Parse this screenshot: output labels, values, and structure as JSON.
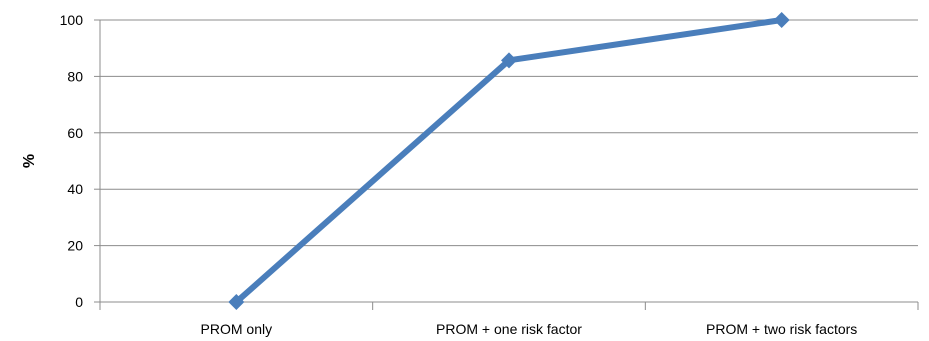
{
  "chart_data": {
    "type": "line",
    "title": "",
    "xlabel": "",
    "ylabel": "%",
    "categories": [
      "PROM only",
      "PROM + one risk factor",
      "PROM + two risk factors"
    ],
    "series": [
      {
        "values": [
          0,
          85.7,
          100
        ],
        "color": "#4a7ebb",
        "marker": "diamond"
      }
    ],
    "ylim": [
      0,
      100
    ],
    "yticks": [
      0,
      20,
      40,
      60,
      80,
      100
    ],
    "grid": "horizontal",
    "legend": "none",
    "colors": {
      "line": "#4a7ebb",
      "grid": "#8c8c8c",
      "axis": "#8c8c8c",
      "text": "#000000"
    }
  }
}
